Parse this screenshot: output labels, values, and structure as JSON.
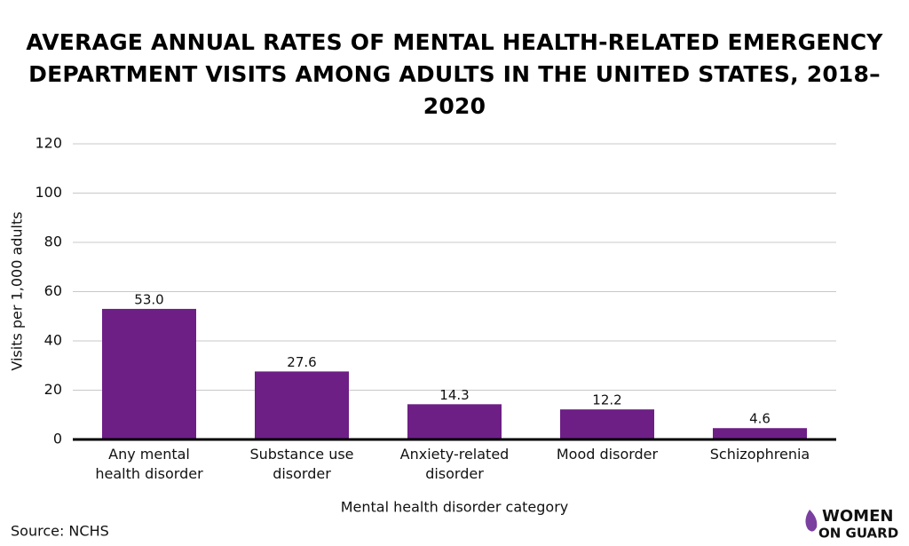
{
  "chart_data": {
    "type": "bar",
    "title": "AVERAGE ANNUAL RATES OF MENTAL HEALTH-RELATED EMERGENCY\nDEPARTMENT VISITS AMONG ADULTS IN THE UNITED STATES, 2018–2020",
    "categories": [
      "Any mental\nhealth disorder",
      "Substance use\ndisorder",
      "Anxiety-related\ndisorder",
      "Mood disorder",
      "Schizophrenia"
    ],
    "values": [
      53.0,
      27.6,
      14.3,
      12.2,
      4.6
    ],
    "value_labels": [
      "53.0",
      "27.6",
      "14.3",
      "12.2",
      "4.6"
    ],
    "color": "#6d1f86",
    "ylim": [
      0,
      120
    ],
    "yticks": [
      0,
      20,
      40,
      60,
      80,
      100,
      120
    ],
    "grid": true,
    "y_label": "Visits per 1,000 adults",
    "x_label": "Mental health disorder category",
    "source": "Source: NCHS"
  },
  "logo": {
    "line1": "WOMEN",
    "line2": "ON GUARD"
  }
}
